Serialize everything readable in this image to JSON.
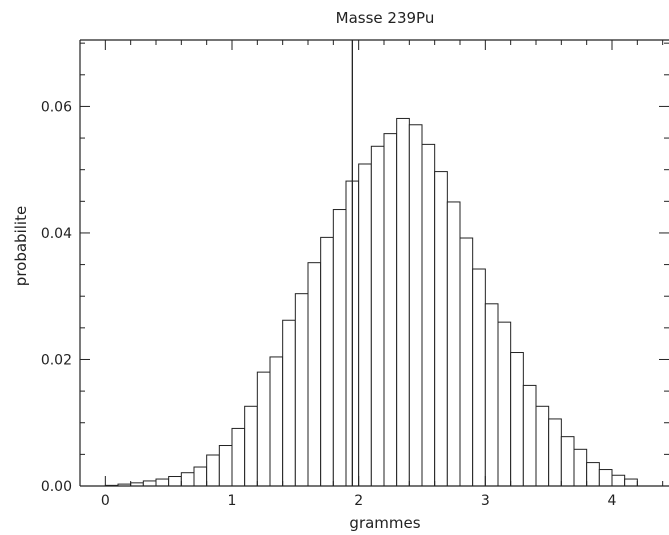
{
  "chart_data": {
    "type": "bar",
    "title": "Masse 239Pu",
    "xlabel": "grammes",
    "ylabel": "probabilite",
    "xlim": [
      -0.2,
      4.45
    ],
    "ylim": [
      0,
      0.0705
    ],
    "x_ticks": [
      0,
      1,
      2,
      3,
      4
    ],
    "x_tick_labels": [
      "0",
      "1",
      "2",
      "3",
      "4"
    ],
    "y_ticks": [
      0,
      0.02,
      0.04,
      0.06
    ],
    "y_tick_labels": [
      "0.00",
      "0.02",
      "0.04",
      "0.06"
    ],
    "bin_width": 0.1,
    "bin_centers": [
      0.05,
      0.15,
      0.25,
      0.35,
      0.45,
      0.55,
      0.65,
      0.75,
      0.85,
      0.95,
      1.05,
      1.15,
      1.25,
      1.35,
      1.45,
      1.55,
      1.65,
      1.75,
      1.85,
      1.95,
      2.05,
      2.15,
      2.25,
      2.35,
      2.45,
      2.55,
      2.65,
      2.75,
      2.85,
      2.95,
      3.05,
      3.15,
      3.25,
      3.35,
      3.45,
      3.55,
      3.65,
      3.75,
      3.85,
      3.95,
      4.05,
      4.15
    ],
    "values": [
      0.0001,
      0.0003,
      0.0005,
      0.0008,
      0.0011,
      0.0015,
      0.0021,
      0.003,
      0.0049,
      0.0064,
      0.0091,
      0.0126,
      0.018,
      0.0204,
      0.0262,
      0.0304,
      0.0353,
      0.0393,
      0.0437,
      0.0482,
      0.0509,
      0.0537,
      0.0557,
      0.0581,
      0.0571,
      0.054,
      0.0497,
      0.0449,
      0.0392,
      0.0343,
      0.0288,
      0.0259,
      0.0211,
      0.0159,
      0.0126,
      0.0106,
      0.0078,
      0.0058,
      0.0037,
      0.0026,
      0.0017,
      0.0011
    ],
    "marker_x": 1.95,
    "grid": false
  }
}
